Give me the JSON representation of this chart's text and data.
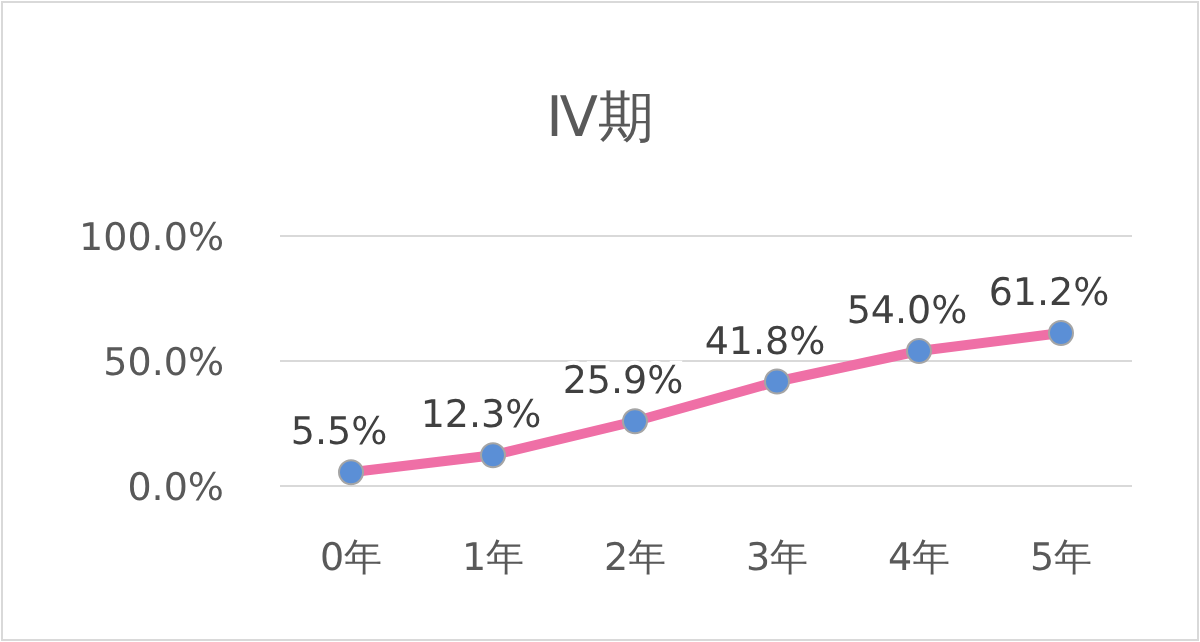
{
  "chart_data": {
    "type": "line",
    "title": "Ⅳ期",
    "categories": [
      "0年",
      "1年",
      "2年",
      "3年",
      "4年",
      "5年"
    ],
    "series": [
      {
        "color": "#ef6fa6",
        "values": [
          5.5,
          12.3,
          25.9,
          41.8,
          54.0,
          61.2
        ],
        "value_labels": [
          "5.5%",
          "12.3%",
          "25.9%",
          "41.8%",
          "54.0%",
          "61.2%"
        ]
      }
    ],
    "ylim": [
      0,
      100
    ],
    "yticks": [
      {
        "value": 0,
        "label": "0.0%"
      },
      {
        "value": 50,
        "label": "50.0%"
      },
      {
        "value": 100,
        "label": "100.0%"
      }
    ],
    "grid": "y",
    "marker": "circle",
    "line_style": "solid"
  }
}
